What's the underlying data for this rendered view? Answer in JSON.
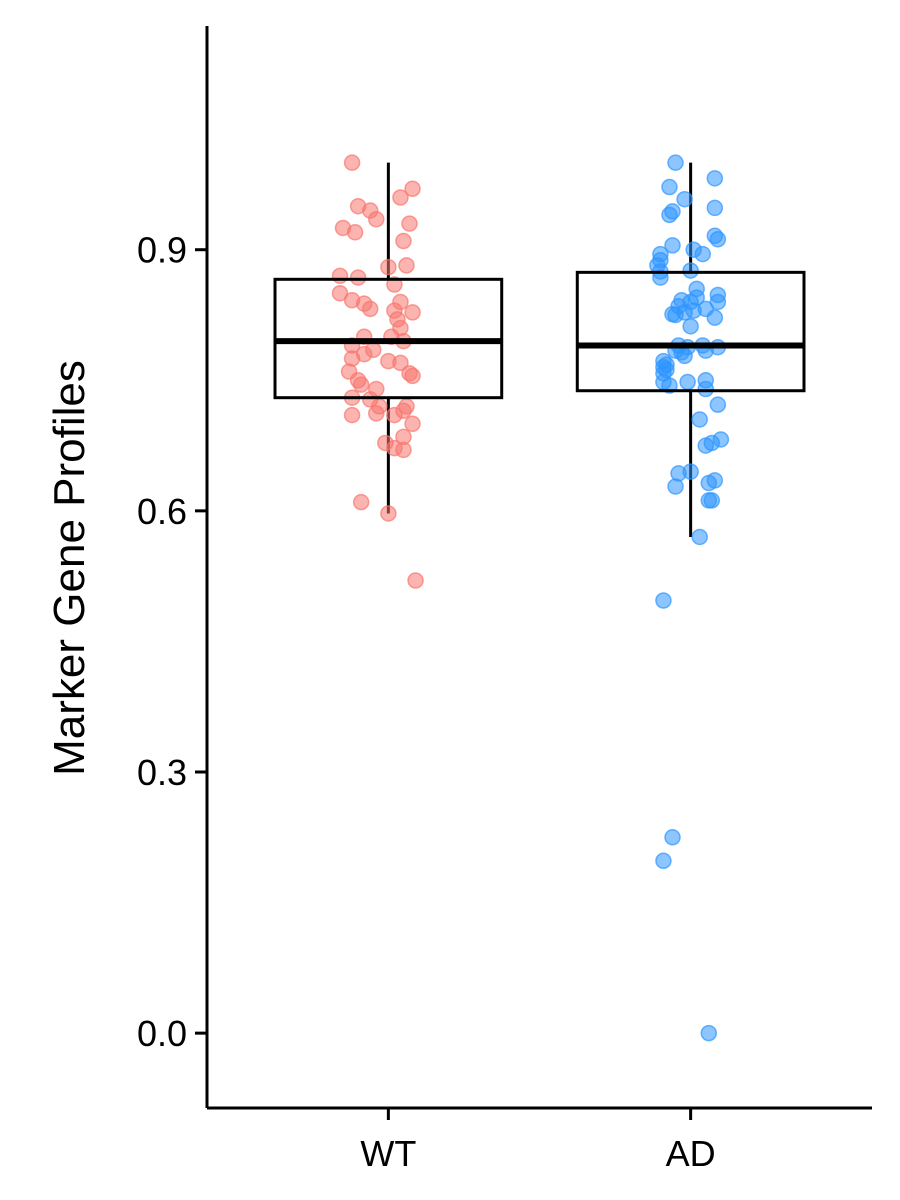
{
  "chart_data": {
    "type": "box",
    "title": "",
    "xlabel": "",
    "ylabel": "Marker Gene Profiles",
    "ylim": [
      -0.086,
      1.157
    ],
    "y_ticks": [
      0.0,
      0.3,
      0.6,
      0.9
    ],
    "y_tick_labels": [
      "0.0",
      "0.3",
      "0.6",
      "0.9"
    ],
    "categories": [
      "WT",
      "AD"
    ],
    "grid": false,
    "legend": "none",
    "groups": [
      {
        "name": "WT",
        "color": "#F8766D",
        "box": {
          "whisker_low": 0.597,
          "q1": 0.73,
          "median": 0.795,
          "q3": 0.866,
          "whisker_high": 1.0
        },
        "points": [
          {
            "dx": -0.12,
            "y": 1.0
          },
          {
            "dx": 0.08,
            "y": 0.97
          },
          {
            "dx": -0.1,
            "y": 0.95
          },
          {
            "dx": 0.04,
            "y": 0.96
          },
          {
            "dx": -0.06,
            "y": 0.945
          },
          {
            "dx": -0.04,
            "y": 0.935
          },
          {
            "dx": 0.07,
            "y": 0.93
          },
          {
            "dx": -0.15,
            "y": 0.925
          },
          {
            "dx": -0.11,
            "y": 0.92
          },
          {
            "dx": 0.05,
            "y": 0.91
          },
          {
            "dx": 0.06,
            "y": 0.882
          },
          {
            "dx": 0.0,
            "y": 0.88
          },
          {
            "dx": -0.16,
            "y": 0.87
          },
          {
            "dx": -0.1,
            "y": 0.868
          },
          {
            "dx": 0.02,
            "y": 0.86
          },
          {
            "dx": -0.16,
            "y": 0.85
          },
          {
            "dx": -0.12,
            "y": 0.842
          },
          {
            "dx": -0.08,
            "y": 0.838
          },
          {
            "dx": 0.04,
            "y": 0.84
          },
          {
            "dx": -0.06,
            "y": 0.832
          },
          {
            "dx": 0.02,
            "y": 0.83
          },
          {
            "dx": 0.08,
            "y": 0.828
          },
          {
            "dx": 0.03,
            "y": 0.82
          },
          {
            "dx": 0.04,
            "y": 0.81
          },
          {
            "dx": 0.01,
            "y": 0.8
          },
          {
            "dx": -0.08,
            "y": 0.8
          },
          {
            "dx": 0.05,
            "y": 0.795
          },
          {
            "dx": -0.12,
            "y": 0.79
          },
          {
            "dx": -0.05,
            "y": 0.785
          },
          {
            "dx": -0.08,
            "y": 0.78
          },
          {
            "dx": -0.12,
            "y": 0.775
          },
          {
            "dx": 0.04,
            "y": 0.77
          },
          {
            "dx": 0.0,
            "y": 0.772
          },
          {
            "dx": -0.13,
            "y": 0.76
          },
          {
            "dx": 0.07,
            "y": 0.758
          },
          {
            "dx": 0.08,
            "y": 0.755
          },
          {
            "dx": -0.1,
            "y": 0.75
          },
          {
            "dx": -0.09,
            "y": 0.745
          },
          {
            "dx": -0.04,
            "y": 0.74
          },
          {
            "dx": -0.12,
            "y": 0.73
          },
          {
            "dx": -0.06,
            "y": 0.728
          },
          {
            "dx": -0.03,
            "y": 0.72
          },
          {
            "dx": 0.06,
            "y": 0.72
          },
          {
            "dx": 0.05,
            "y": 0.715
          },
          {
            "dx": -0.04,
            "y": 0.712
          },
          {
            "dx": -0.12,
            "y": 0.71
          },
          {
            "dx": 0.02,
            "y": 0.71
          },
          {
            "dx": 0.08,
            "y": 0.7
          },
          {
            "dx": 0.05,
            "y": 0.685
          },
          {
            "dx": -0.01,
            "y": 0.678
          },
          {
            "dx": 0.02,
            "y": 0.672
          },
          {
            "dx": 0.05,
            "y": 0.67
          },
          {
            "dx": -0.09,
            "y": 0.61
          },
          {
            "dx": 0.0,
            "y": 0.597
          },
          {
            "dx": 0.09,
            "y": 0.52
          }
        ]
      },
      {
        "name": "AD",
        "color": "#2E96FF",
        "box": {
          "whisker_low": 0.57,
          "q1": 0.738,
          "median": 0.79,
          "q3": 0.874,
          "whisker_high": 1.0
        },
        "points": [
          {
            "dx": -0.05,
            "y": 1.0
          },
          {
            "dx": 0.08,
            "y": 0.982
          },
          {
            "dx": -0.07,
            "y": 0.972
          },
          {
            "dx": -0.02,
            "y": 0.958
          },
          {
            "dx": 0.08,
            "y": 0.948
          },
          {
            "dx": -0.06,
            "y": 0.944
          },
          {
            "dx": -0.07,
            "y": 0.94
          },
          {
            "dx": 0.08,
            "y": 0.916
          },
          {
            "dx": 0.09,
            "y": 0.912
          },
          {
            "dx": -0.06,
            "y": 0.905
          },
          {
            "dx": 0.01,
            "y": 0.9
          },
          {
            "dx": -0.1,
            "y": 0.895
          },
          {
            "dx": -0.1,
            "y": 0.888
          },
          {
            "dx": -0.11,
            "y": 0.882
          },
          {
            "dx": -0.1,
            "y": 0.875
          },
          {
            "dx": 0.04,
            "y": 0.895
          },
          {
            "dx": 0.0,
            "y": 0.876
          },
          {
            "dx": -0.1,
            "y": 0.868
          },
          {
            "dx": 0.02,
            "y": 0.855
          },
          {
            "dx": 0.09,
            "y": 0.848
          },
          {
            "dx": 0.02,
            "y": 0.845
          },
          {
            "dx": 0.0,
            "y": 0.84
          },
          {
            "dx": -0.03,
            "y": 0.842
          },
          {
            "dx": 0.09,
            "y": 0.84
          },
          {
            "dx": -0.04,
            "y": 0.835
          },
          {
            "dx": 0.05,
            "y": 0.832
          },
          {
            "dx": 0.01,
            "y": 0.83
          },
          {
            "dx": -0.02,
            "y": 0.828
          },
          {
            "dx": -0.06,
            "y": 0.826
          },
          {
            "dx": -0.05,
            "y": 0.825
          },
          {
            "dx": 0.08,
            "y": 0.822
          },
          {
            "dx": 0.0,
            "y": 0.812
          },
          {
            "dx": -0.04,
            "y": 0.79
          },
          {
            "dx": 0.04,
            "y": 0.79
          },
          {
            "dx": -0.01,
            "y": 0.788
          },
          {
            "dx": 0.09,
            "y": 0.788
          },
          {
            "dx": -0.05,
            "y": 0.784
          },
          {
            "dx": 0.05,
            "y": 0.784
          },
          {
            "dx": -0.03,
            "y": 0.782
          },
          {
            "dx": -0.02,
            "y": 0.778
          },
          {
            "dx": -0.09,
            "y": 0.772
          },
          {
            "dx": -0.08,
            "y": 0.768
          },
          {
            "dx": -0.09,
            "y": 0.765
          },
          {
            "dx": -0.08,
            "y": 0.762
          },
          {
            "dx": -0.09,
            "y": 0.758
          },
          {
            "dx": 0.05,
            "y": 0.75
          },
          {
            "dx": -0.01,
            "y": 0.748
          },
          {
            "dx": -0.09,
            "y": 0.748
          },
          {
            "dx": -0.07,
            "y": 0.744
          },
          {
            "dx": 0.05,
            "y": 0.74
          },
          {
            "dx": 0.09,
            "y": 0.722
          },
          {
            "dx": 0.03,
            "y": 0.705
          },
          {
            "dx": 0.1,
            "y": 0.682
          },
          {
            "dx": 0.07,
            "y": 0.678
          },
          {
            "dx": 0.05,
            "y": 0.675
          },
          {
            "dx": 0.0,
            "y": 0.645
          },
          {
            "dx": -0.04,
            "y": 0.643
          },
          {
            "dx": 0.08,
            "y": 0.635
          },
          {
            "dx": 0.06,
            "y": 0.632
          },
          {
            "dx": -0.05,
            "y": 0.628
          },
          {
            "dx": 0.06,
            "y": 0.612
          },
          {
            "dx": 0.07,
            "y": 0.612
          },
          {
            "dx": 0.03,
            "y": 0.57
          },
          {
            "dx": -0.09,
            "y": 0.497
          },
          {
            "dx": -0.06,
            "y": 0.225
          },
          {
            "dx": -0.09,
            "y": 0.198
          },
          {
            "dx": 0.06,
            "y": 0.0
          }
        ]
      }
    ]
  }
}
